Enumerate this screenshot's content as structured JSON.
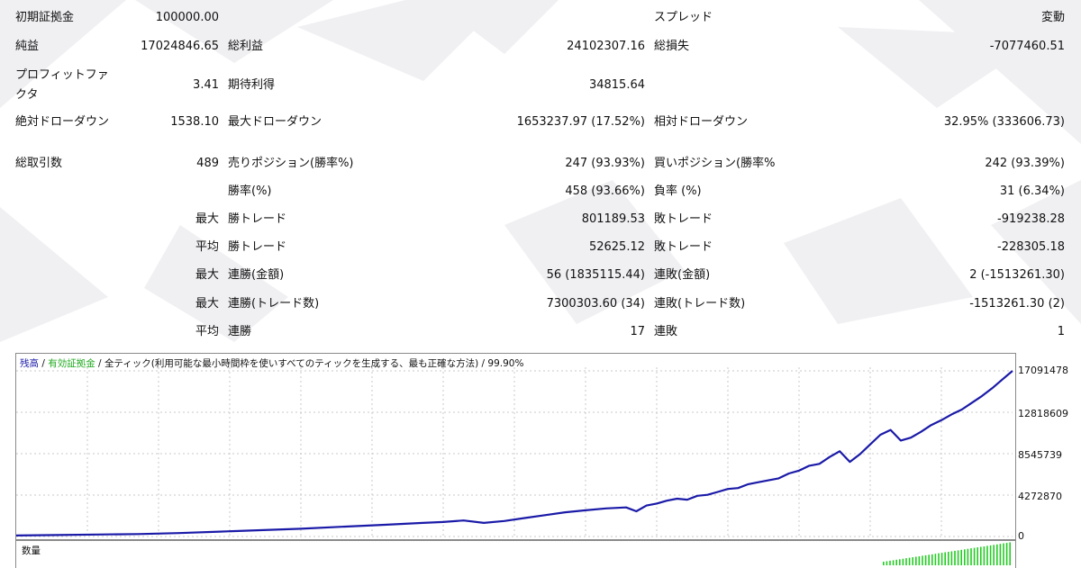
{
  "report": {
    "rows": [
      {
        "cells": [
          {
            "id": "label-initial-deposit",
            "text": "初期証拠金",
            "x": 17,
            "y": 12,
            "align": "l"
          },
          {
            "id": "value-initial-deposit",
            "text": "100000.00",
            "x": 243,
            "y": 12,
            "align": "r"
          },
          {
            "id": "label-spread",
            "text": "スプレッド",
            "x": 726,
            "y": 12,
            "align": "l"
          },
          {
            "id": "value-spread",
            "text": "変動",
            "x": 1182,
            "y": 12,
            "align": "r"
          }
        ]
      }
    ]
  },
  "labels": {
    "initial_deposit": "初期証拠金",
    "initial_deposit_value": "100000.00",
    "spread": "スプレッド",
    "spread_value": "変動",
    "net_profit": "純益",
    "net_profit_value": "17024846.65",
    "gross_profit": "総利益",
    "gross_profit_value": "24102307.16",
    "gross_loss": "総損失",
    "gross_loss_value": "-7077460.51",
    "profit_factor_1": "プロフィットファ",
    "profit_factor_2": "クタ",
    "profit_factor_value": "3.41",
    "expected_payoff": "期待利得",
    "expected_payoff_value": "34815.64",
    "abs_drawdown": "絶対ドローダウン",
    "abs_drawdown_value": "1538.10",
    "max_drawdown": "最大ドローダウン",
    "max_drawdown_value": "1653237.97 (17.52%)",
    "rel_drawdown": "相対ドローダウン",
    "rel_drawdown_value": "32.95% (333606.73)",
    "total_trades": "総取引数",
    "total_trades_value": "489",
    "short_positions": "売りポジション(勝率%)",
    "short_positions_value": "247 (93.93%)",
    "long_positions": "買いポジション(勝率%",
    "long_positions_value": "242 (93.39%)",
    "win_rate": "勝率(%)",
    "win_rate_value": "458 (93.66%)",
    "loss_rate": "負率 (%)",
    "loss_rate_value": "31 (6.34%)",
    "largest": "最大",
    "average": "平均",
    "largest_win_trade": "勝トレード",
    "largest_win_trade_value": "801189.53",
    "largest_loss_trade": "敗トレード",
    "largest_loss_trade_value": "-919238.28",
    "average_win_trade": "勝トレード",
    "average_win_trade_value": "52625.12",
    "average_loss_trade": "敗トレード",
    "average_loss_trade_value": "-228305.18",
    "max_consec_wins_amount": "連勝(金額)",
    "max_consec_wins_amount_value": "56 (1835115.44)",
    "max_consec_losses_amount": "連敗(金額)",
    "max_consec_losses_amount_value": "2 (-1513261.30)",
    "max_consec_wins_trades": "連勝(トレード数)",
    "max_consec_wins_trades_value": "7300303.60 (34)",
    "max_consec_losses_trades": "連敗(トレード数)",
    "max_consec_losses_trades_value": "-1513261.30 (2)",
    "avg_consec_wins": "連勝",
    "avg_consec_wins_value": "17",
    "avg_consec_losses": "連敗",
    "avg_consec_losses_value": "1"
  },
  "chart": {
    "legend_balance": "残高",
    "legend_sep1": " / ",
    "legend_equity": "有効証拠金",
    "legend_sep2": " / ",
    "legend_model": "全ティック(利用可能な最小時間枠を使いすべてのティックを生成する、最も正確な方法)",
    "legend_quality": " / 99.90%",
    "volume_label": "数量",
    "balance_color": "#1a1aa8",
    "equity_color": "#22bb22",
    "volume_color": "#22cc22"
  },
  "chart_data": {
    "type": "line",
    "yticks": [
      "17091478",
      "12818609",
      "8545739",
      "4272870",
      "0"
    ],
    "ytick_values": [
      17091478,
      12818609,
      8545739,
      4272870,
      0
    ],
    "ylim": [
      0,
      17091478
    ],
    "series": [
      {
        "name": "残高",
        "x": [
          0,
          20,
          40,
          60,
          80,
          100,
          120,
          140,
          160,
          180,
          200,
          210,
          220,
          230,
          240,
          250,
          260,
          270,
          280,
          290,
          300,
          305,
          310,
          315,
          320,
          325,
          330,
          335,
          340,
          345,
          350,
          355,
          360,
          365,
          370,
          375,
          380,
          385,
          390,
          395,
          400,
          405,
          410,
          415,
          420,
          425,
          430,
          435,
          440,
          445,
          450,
          455,
          460,
          465,
          470,
          475,
          480,
          485,
          490
        ],
        "y": [
          100000,
          150000,
          200000,
          250000,
          350000,
          500000,
          650000,
          800000,
          1000000,
          1200000,
          1400000,
          1500000,
          1650000,
          1400000,
          1600000,
          1900000,
          2200000,
          2500000,
          2700000,
          2900000,
          3000000,
          2600000,
          3200000,
          3400000,
          3700000,
          3900000,
          3800000,
          4200000,
          4300000,
          4600000,
          4900000,
          5000000,
          5400000,
          5600000,
          5800000,
          6000000,
          6500000,
          6800000,
          7300000,
          7500000,
          8200000,
          8800000,
          7700000,
          8500000,
          9500000,
          10500000,
          11000000,
          9900000,
          10200000,
          10800000,
          11500000,
          12000000,
          12600000,
          13100000,
          13800000,
          14500000,
          15300000,
          16200000,
          17091478
        ]
      }
    ]
  }
}
